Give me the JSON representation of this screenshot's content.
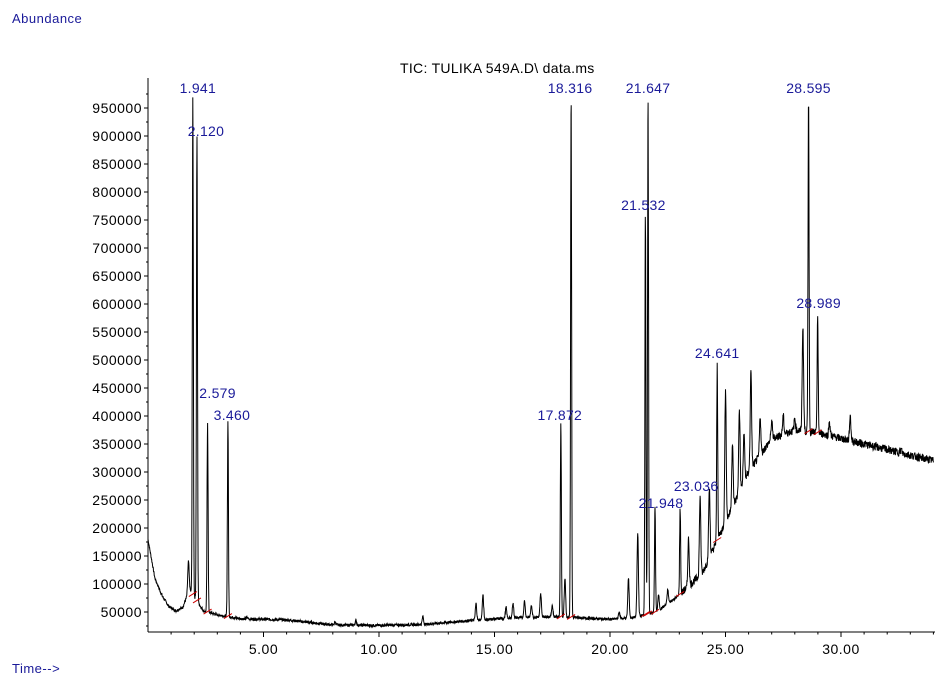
{
  "chart_data": {
    "type": "line",
    "title": "TIC: TULIKA 549A.D\\ data.ms",
    "ylabel": "Abundance",
    "xlabel": "Time-->",
    "xlim": [
      0.0,
      34.0
    ],
    "ylim": [
      20000,
      1010000
    ],
    "x_ticks": [
      {
        "value": 5,
        "label": "5.00"
      },
      {
        "value": 10,
        "label": "10.00"
      },
      {
        "value": 15,
        "label": "15.00"
      },
      {
        "value": 20,
        "label": "20.00"
      },
      {
        "value": 25,
        "label": "25.00"
      },
      {
        "value": 30,
        "label": "30.00"
      }
    ],
    "y_ticks": [
      {
        "value": 50000,
        "label": "50000"
      },
      {
        "value": 100000,
        "label": "100000"
      },
      {
        "value": 150000,
        "label": "150000"
      },
      {
        "value": 200000,
        "label": "200000"
      },
      {
        "value": 250000,
        "label": "250000"
      },
      {
        "value": 300000,
        "label": "300000"
      },
      {
        "value": 350000,
        "label": "350000"
      },
      {
        "value": 400000,
        "label": "400000"
      },
      {
        "value": 450000,
        "label": "450000"
      },
      {
        "value": 500000,
        "label": "500000"
      },
      {
        "value": 550000,
        "label": "550000"
      },
      {
        "value": 600000,
        "label": "600000"
      },
      {
        "value": 650000,
        "label": "650000"
      },
      {
        "value": 700000,
        "label": "700000"
      },
      {
        "value": 750000,
        "label": "750000"
      },
      {
        "value": 800000,
        "label": "800000"
      },
      {
        "value": 850000,
        "label": "850000"
      },
      {
        "value": 900000,
        "label": "900000"
      },
      {
        "value": 950000,
        "label": "950000"
      }
    ],
    "peaks": [
      {
        "rt": 1.941,
        "label": "1.941",
        "height": 970000
      },
      {
        "rt": 2.12,
        "label": "2.120",
        "height": 900000
      },
      {
        "rt": 2.579,
        "label": "2.579",
        "height": 390000
      },
      {
        "rt": 3.46,
        "label": "3.460",
        "height": 390000
      },
      {
        "rt": 17.872,
        "label": "17.872",
        "height": 390000
      },
      {
        "rt": 18.316,
        "label": "18.316",
        "height": 970000
      },
      {
        "rt": 21.532,
        "label": "21.532",
        "height": 760000
      },
      {
        "rt": 21.647,
        "label": "21.647",
        "height": 970000
      },
      {
        "rt": 21.948,
        "label": "21.948",
        "height": 240000
      },
      {
        "rt": 23.036,
        "label": "23.036",
        "height": 235000
      },
      {
        "rt": 24.641,
        "label": "24.641",
        "height": 490000
      },
      {
        "rt": 28.595,
        "label": "28.595",
        "height": 970000
      },
      {
        "rt": 28.989,
        "label": "28.989",
        "height": 580000
      }
    ],
    "minor_peaks": [
      {
        "rt": 1.75,
        "height": 140000
      },
      {
        "rt": 4.3,
        "height": 40000
      },
      {
        "rt": 6.0,
        "height": 35000
      },
      {
        "rt": 8.1,
        "height": 32000
      },
      {
        "rt": 9.0,
        "height": 35000
      },
      {
        "rt": 11.9,
        "height": 42000
      },
      {
        "rt": 14.2,
        "height": 65000
      },
      {
        "rt": 14.5,
        "height": 80000
      },
      {
        "rt": 15.5,
        "height": 58000
      },
      {
        "rt": 15.8,
        "height": 66000
      },
      {
        "rt": 16.3,
        "height": 70000
      },
      {
        "rt": 16.6,
        "height": 62000
      },
      {
        "rt": 17.0,
        "height": 82000
      },
      {
        "rt": 17.5,
        "height": 62000
      },
      {
        "rt": 18.05,
        "height": 110000
      },
      {
        "rt": 20.4,
        "height": 50000
      },
      {
        "rt": 20.8,
        "height": 110000
      },
      {
        "rt": 21.2,
        "height": 190000
      },
      {
        "rt": 22.1,
        "height": 80000
      },
      {
        "rt": 22.5,
        "height": 90000
      },
      {
        "rt": 23.4,
        "height": 180000
      },
      {
        "rt": 23.9,
        "height": 255000
      },
      {
        "rt": 24.3,
        "height": 270000
      },
      {
        "rt": 25.0,
        "height": 445000
      },
      {
        "rt": 25.3,
        "height": 350000
      },
      {
        "rt": 25.6,
        "height": 410000
      },
      {
        "rt": 25.8,
        "height": 370000
      },
      {
        "rt": 26.1,
        "height": 480000
      },
      {
        "rt": 26.5,
        "height": 400000
      },
      {
        "rt": 27.0,
        "height": 390000
      },
      {
        "rt": 27.5,
        "height": 400000
      },
      {
        "rt": 28.0,
        "height": 395000
      },
      {
        "rt": 28.35,
        "height": 560000
      },
      {
        "rt": 29.5,
        "height": 390000
      },
      {
        "rt": 30.4,
        "height": 400000
      },
      {
        "rt": 32.6,
        "height": 340000
      }
    ],
    "baseline": [
      [
        0.0,
        180000
      ],
      [
        0.3,
        110000
      ],
      [
        0.6,
        80000
      ],
      [
        0.9,
        60000
      ],
      [
        1.2,
        52000
      ],
      [
        1.5,
        58000
      ],
      [
        1.8,
        90000
      ],
      [
        2.4,
        52000
      ],
      [
        3.0,
        45000
      ],
      [
        4.0,
        38000
      ],
      [
        6.0,
        36000
      ],
      [
        8.0,
        27000
      ],
      [
        10.0,
        26000
      ],
      [
        12.0,
        28000
      ],
      [
        14.0,
        35000
      ],
      [
        16.0,
        40000
      ],
      [
        17.5,
        42000
      ],
      [
        18.5,
        40000
      ],
      [
        20.0,
        37000
      ],
      [
        21.0,
        40000
      ],
      [
        22.0,
        50000
      ],
      [
        23.0,
        80000
      ],
      [
        24.0,
        120000
      ],
      [
        25.0,
        210000
      ],
      [
        26.0,
        300000
      ],
      [
        27.0,
        360000
      ],
      [
        28.0,
        375000
      ],
      [
        29.0,
        370000
      ],
      [
        30.0,
        360000
      ],
      [
        31.0,
        350000
      ],
      [
        32.0,
        340000
      ],
      [
        33.0,
        330000
      ],
      [
        34.0,
        320000
      ]
    ]
  }
}
